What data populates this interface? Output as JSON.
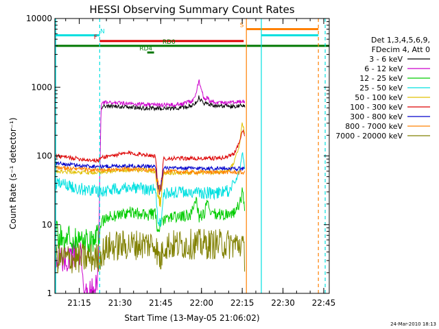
{
  "chart_data": {
    "type": "line",
    "title": "HESSI Observing Summary Count Rates",
    "xlabel": "Start Time (13-May-05 21:06:02)",
    "ylabel": "Count Rate (s⁻¹ detector⁻¹)",
    "x_unit": "minutes since 21:06:02",
    "xlim": [
      0,
      101
    ],
    "ylim": [
      1,
      10000
    ],
    "yscale": "log",
    "x_ticks": [
      {
        "v": 8.97,
        "label": "21:15"
      },
      {
        "v": 23.97,
        "label": "21:30"
      },
      {
        "v": 38.97,
        "label": "21:45"
      },
      {
        "v": 53.97,
        "label": "22:00"
      },
      {
        "v": 68.97,
        "label": "22:15"
      },
      {
        "v": 83.97,
        "label": "22:30"
      },
      {
        "v": 98.97,
        "label": "22:45"
      }
    ],
    "y_ticks": [
      {
        "v": 1,
        "label": "1"
      },
      {
        "v": 10,
        "label": "10"
      },
      {
        "v": 100,
        "label": "100"
      },
      {
        "v": 1000,
        "label": "1000"
      },
      {
        "v": 10000,
        "label": "10000"
      }
    ],
    "legend": {
      "position": "right",
      "header": [
        "Det 1,3,4,5,6,9,",
        "FDecim 4, Att 0"
      ]
    },
    "series": [
      {
        "name": "3 - 6 keV",
        "color": "#000000",
        "points": [
          [
            17,
            500
          ],
          [
            18,
            530
          ],
          [
            25,
            520
          ],
          [
            32,
            500
          ],
          [
            40,
            490
          ],
          [
            45,
            500
          ],
          [
            48,
            510
          ],
          [
            51,
            560
          ],
          [
            52,
            600
          ],
          [
            53,
            720
          ],
          [
            54,
            620
          ],
          [
            55,
            560
          ],
          [
            56,
            600
          ],
          [
            57,
            560
          ],
          [
            60,
            540
          ],
          [
            65,
            530
          ],
          [
            69,
            540
          ],
          [
            70,
            520
          ]
        ]
      },
      {
        "name": "6 - 12 keV",
        "color": "#cc00cc",
        "points": [
          [
            0,
            3.5
          ],
          [
            5,
            3.5
          ],
          [
            10,
            3.5
          ],
          [
            11,
            1.0
          ],
          [
            15,
            1.0
          ],
          [
            16,
            3.0
          ],
          [
            17,
            550
          ],
          [
            18,
            600
          ],
          [
            25,
            580
          ],
          [
            32,
            560
          ],
          [
            40,
            550
          ],
          [
            45,
            560
          ],
          [
            48,
            580
          ],
          [
            51,
            650
          ],
          [
            52,
            800
          ],
          [
            53,
            1300
          ],
          [
            54,
            900
          ],
          [
            55,
            660
          ],
          [
            56,
            720
          ],
          [
            57,
            630
          ],
          [
            60,
            600
          ],
          [
            65,
            590
          ],
          [
            69,
            620
          ],
          [
            70,
            600
          ]
        ]
      },
      {
        "name": "12 - 25 keV",
        "color": "#00cc00",
        "points": [
          [
            0,
            7
          ],
          [
            8,
            6
          ],
          [
            16,
            6
          ],
          [
            17,
            11
          ],
          [
            20,
            13
          ],
          [
            27,
            15
          ],
          [
            33,
            14
          ],
          [
            37,
            14
          ],
          [
            38,
            8
          ],
          [
            39,
            10
          ],
          [
            42,
            13
          ],
          [
            47,
            13
          ],
          [
            50,
            14
          ],
          [
            52,
            25
          ],
          [
            53,
            13
          ],
          [
            55,
            14
          ],
          [
            56,
            22
          ],
          [
            57,
            14
          ],
          [
            62,
            14
          ],
          [
            66,
            15
          ],
          [
            68,
            19
          ],
          [
            69,
            30
          ],
          [
            70,
            17
          ]
        ]
      },
      {
        "name": "25 - 50 keV",
        "color": "#00e0e0",
        "points": [
          [
            0,
            40
          ],
          [
            5,
            37
          ],
          [
            10,
            33
          ],
          [
            16,
            31
          ],
          [
            17,
            30
          ],
          [
            22,
            33
          ],
          [
            27,
            36
          ],
          [
            33,
            33
          ],
          [
            37,
            32
          ],
          [
            38,
            12
          ],
          [
            39,
            10
          ],
          [
            40,
            28
          ],
          [
            45,
            30
          ],
          [
            50,
            29
          ],
          [
            55,
            29
          ],
          [
            60,
            29
          ],
          [
            64,
            31
          ],
          [
            66,
            38
          ],
          [
            68,
            60
          ],
          [
            69,
            120
          ],
          [
            70,
            60
          ]
        ]
      },
      {
        "name": "50 - 100 keV",
        "color": "#e0c000",
        "points": [
          [
            0,
            60
          ],
          [
            10,
            58
          ],
          [
            17,
            58
          ],
          [
            25,
            62
          ],
          [
            33,
            62
          ],
          [
            37,
            60
          ],
          [
            38,
            24
          ],
          [
            39,
            20
          ],
          [
            40,
            57
          ],
          [
            50,
            57
          ],
          [
            60,
            57
          ],
          [
            64,
            60
          ],
          [
            66,
            80
          ],
          [
            68,
            150
          ],
          [
            69,
            310
          ],
          [
            70,
            200
          ]
        ]
      },
      {
        "name": "100 - 300 keV",
        "color": "#dd0000",
        "points": [
          [
            0,
            100
          ],
          [
            10,
            90
          ],
          [
            16,
            85
          ],
          [
            17,
            95
          ],
          [
            20,
            100
          ],
          [
            27,
            110
          ],
          [
            33,
            105
          ],
          [
            37,
            100
          ],
          [
            38,
            35
          ],
          [
            39,
            30
          ],
          [
            40,
            92
          ],
          [
            50,
            92
          ],
          [
            58,
            92
          ],
          [
            63,
            95
          ],
          [
            66,
            110
          ],
          [
            68,
            160
          ],
          [
            69,
            230
          ],
          [
            70,
            200
          ]
        ]
      },
      {
        "name": "300 - 800 keV",
        "color": "#0000cc",
        "points": [
          [
            0,
            78
          ],
          [
            10,
            72
          ],
          [
            17,
            70
          ],
          [
            25,
            72
          ],
          [
            33,
            71
          ],
          [
            37,
            70
          ],
          [
            38,
            35
          ],
          [
            39,
            32
          ],
          [
            40,
            66
          ],
          [
            50,
            66
          ],
          [
            60,
            66
          ],
          [
            66,
            66
          ],
          [
            69,
            65
          ],
          [
            70,
            63
          ]
        ]
      },
      {
        "name": "800 - 7000 keV",
        "color": "#ff8000",
        "points": [
          [
            0,
            68
          ],
          [
            10,
            64
          ],
          [
            17,
            62
          ],
          [
            25,
            64
          ],
          [
            33,
            64
          ],
          [
            37,
            62
          ],
          [
            38,
            34
          ],
          [
            39,
            30
          ],
          [
            40,
            60
          ],
          [
            50,
            58
          ],
          [
            60,
            58
          ],
          [
            66,
            58
          ],
          [
            69,
            57
          ],
          [
            70,
            57
          ]
        ]
      },
      {
        "name": "7000 - 20000 keV",
        "color": "#808000",
        "points": [
          [
            0,
            3.2
          ],
          [
            8,
            3.2
          ],
          [
            16,
            3.3
          ],
          [
            17,
            3.8
          ],
          [
            20,
            4.8
          ],
          [
            25,
            5.0
          ],
          [
            33,
            5.2
          ],
          [
            37,
            5.3
          ],
          [
            38,
            3.5
          ],
          [
            39,
            3.0
          ],
          [
            40,
            5.0
          ],
          [
            50,
            5.2
          ],
          [
            60,
            5.2
          ],
          [
            69,
            5.2
          ],
          [
            70,
            3.0
          ]
        ]
      }
    ],
    "state_bars": [
      {
        "label": "N",
        "color": "#00e0e0",
        "x": [
          0,
          16.5
        ],
        "y": 5700,
        "label_x": 17.5
      },
      {
        "label": "F",
        "color": "#dd0000",
        "x": [
          16.5,
          69.5
        ],
        "y": 4700,
        "label_x": 15.0
      },
      {
        "label": "S",
        "color": "#ff8000",
        "x": [
          70.5,
          97
        ],
        "y": 7000,
        "label_x": 68.8
      },
      {
        "label": "",
        "color": "#00e0e0",
        "x": [
          76,
          97
        ],
        "y": 5700
      },
      {
        "label": "RD0",
        "color": "#007700",
        "x": [
          0,
          101
        ],
        "y": 4000,
        "label_x": 42
      },
      {
        "label": "RD4",
        "color": "#007700",
        "x": [
          34,
          36.5
        ],
        "y": 3200,
        "label_x": 33.5
      }
    ],
    "vlines": [
      {
        "x": 0.3,
        "color": "#00e0e0",
        "dashed": false
      },
      {
        "x": 16.5,
        "color": "#00e0e0",
        "dashed": true
      },
      {
        "x": 70.5,
        "color": "#ff8000",
        "dashed": false
      },
      {
        "x": 76.0,
        "color": "#00e0e0",
        "dashed": false
      },
      {
        "x": 97.0,
        "color": "#ff8000",
        "dashed": true
      },
      {
        "x": 99.5,
        "color": "#00e0e0",
        "dashed": true
      }
    ]
  },
  "footer": {
    "timestamp": "24-Mar-2010 18:13"
  }
}
